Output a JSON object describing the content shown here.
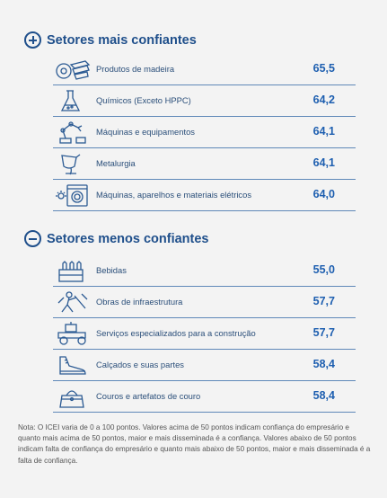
{
  "most_confident": {
    "title": "Setores mais confiantes",
    "items": [
      {
        "label": "Produtos de madeira",
        "value": "65,5",
        "icon": "wood-products-icon"
      },
      {
        "label": "Químicos (Exceto HPPC)",
        "value": "64,2",
        "icon": "chemicals-flask-icon"
      },
      {
        "label": "Máquinas e equipamentos",
        "value": "64,1",
        "icon": "machinery-robot-arm-icon"
      },
      {
        "label": "Metalurgia",
        "value": "64,1",
        "icon": "metallurgy-ladle-icon"
      },
      {
        "label": "Máquinas, aparelhos e materiais elétricos",
        "value": "64,0",
        "icon": "washing-machine-icon"
      }
    ]
  },
  "least_confident": {
    "title": "Setores menos confiantes",
    "items": [
      {
        "label": "Bebidas",
        "value": "55,0",
        "icon": "beverage-crate-icon"
      },
      {
        "label": "Obras de infraestrutura",
        "value": "57,7",
        "icon": "infrastructure-worker-icon"
      },
      {
        "label": "Serviços especializados para a construção",
        "value": "57,7",
        "icon": "road-roller-icon"
      },
      {
        "label": "Calçados e suas partes",
        "value": "58,4",
        "icon": "sneaker-icon"
      },
      {
        "label": "Couros e artefatos de couro",
        "value": "58,4",
        "icon": "handbag-icon"
      }
    ]
  },
  "note": "Nota: O ICEI varia de 0 a 100 pontos. Valores acima de 50 pontos indicam confiança do empresário e quanto mais acima de 50 pontos, maior e mais disseminada é a confiança. Valores abaixo de 50 pontos indicam falta de confiança do empresário e quanto mais abaixo de 50 pontos, maior e mais disseminada é a falta de confiança.",
  "colors": {
    "title": "#1f4f8b",
    "value": "#1e5fb0",
    "label": "#2b4f7a",
    "rule": "#5f88b8"
  }
}
